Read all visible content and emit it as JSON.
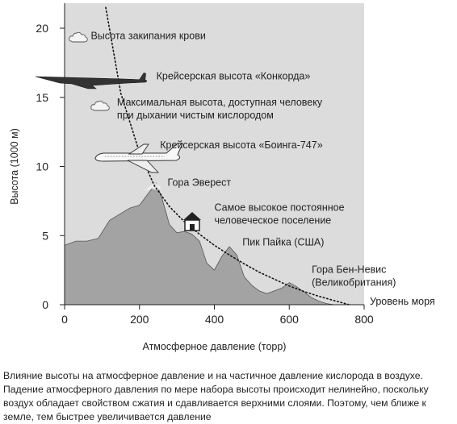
{
  "chart_data": {
    "type": "line",
    "xlabel": "Атмосферное давление (торр)",
    "ylabel": "Высота (1000 м)",
    "xlim": [
      0,
      800
    ],
    "ylim": [
      0,
      21
    ],
    "x_ticks": [
      0,
      200,
      400,
      600,
      800
    ],
    "y_ticks": [
      0,
      5,
      10,
      15,
      20
    ],
    "grid": false,
    "series": [
      {
        "style": "dotted",
        "x": [
          110,
          150,
          200,
          240,
          280,
          320,
          360,
          400,
          440,
          480,
          520,
          560,
          600,
          640,
          680,
          720,
          760
        ],
        "y": [
          21.5,
          15.3,
          11.0,
          8.6,
          7.1,
          6.0,
          5.1,
          4.3,
          3.6,
          2.95,
          2.35,
          1.85,
          1.35,
          0.95,
          0.6,
          0.3,
          0.0
        ]
      }
    ],
    "terrain": {
      "x": [
        0,
        30,
        60,
        90,
        120,
        150,
        175,
        200,
        225,
        245,
        260,
        280,
        300,
        320,
        340,
        360,
        380,
        400,
        420,
        440,
        460,
        480,
        500,
        520,
        540,
        560,
        580,
        600,
        620,
        640,
        660,
        680,
        700,
        720
      ],
      "y": [
        4.3,
        4.6,
        4.6,
        4.8,
        6.1,
        6.6,
        7.0,
        7.2,
        8.1,
        8.8,
        7.7,
        5.8,
        5.2,
        5.3,
        5.1,
        4.6,
        3.0,
        2.5,
        3.5,
        4.2,
        3.6,
        2.0,
        1.4,
        1.0,
        0.8,
        1.0,
        1.2,
        1.6,
        1.3,
        0.9,
        0.5,
        0.25,
        0.08,
        0.0
      ]
    },
    "annotations": [
      {
        "id": "blood-boiling",
        "lines": [
          "Высота закипания крови"
        ],
        "x": 70,
        "y": 19.2,
        "icon": "cloud-icon"
      },
      {
        "id": "concorde",
        "lines": [
          "Крейсерская высота «Конкорда»"
        ],
        "x": 245,
        "y": 16.3,
        "icon": "concorde-icon"
      },
      {
        "id": "max-oxygen",
        "lines": [
          "Максимальная высота, доступная человеку",
          "при дыхании чистым кислородом"
        ],
        "x": 140,
        "y": 14.4,
        "icon": "cloud-icon"
      },
      {
        "id": "boeing",
        "lines": [
          "Крейсерская высота «Боинга-747»"
        ],
        "x": 255,
        "y": 11.3,
        "icon": "boeing-747-icon"
      },
      {
        "id": "everest",
        "lines": [
          "Гора Эверест"
        ],
        "x": 275,
        "y": 8.6
      },
      {
        "id": "settlement",
        "lines": [
          "Самое высокое постоянное",
          "человеческое поселение"
        ],
        "x": 400,
        "y": 6.8,
        "icon": "house-icon"
      },
      {
        "id": "pikes-peak",
        "lines": [
          "Пик Пайка (США)"
        ],
        "x": 475,
        "y": 4.3
      },
      {
        "id": "ben-nevis",
        "lines": [
          "Гора Бен-Невис",
          "(Великобритания)"
        ],
        "x": 660,
        "y": 2.3
      },
      {
        "id": "sea-level",
        "lines": [
          "Уровень моря"
        ],
        "x": 815,
        "y": 0.0
      }
    ]
  },
  "caption": "Влияние высоты на атмосферное давление и на частичное давление кислорода в воздухе. Падение атмосферного давления по мере набора высоты происходит нелинейно, поскольку воздух обладает свойством сжатия и сдавливается верхними слоями. Поэтому, чем ближе к земле, тем быстрее увеличивается давление",
  "colors": {
    "plot_background": "#dcdcdc",
    "terrain": "#a3a3a3",
    "axis": "#222222",
    "curve": "#111111"
  }
}
